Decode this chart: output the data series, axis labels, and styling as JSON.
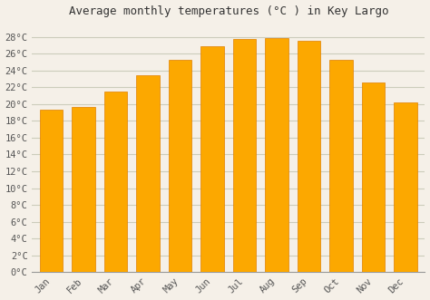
{
  "title": "Average monthly temperatures (°C ) in Key Largo",
  "months": [
    "Jan",
    "Feb",
    "Mar",
    "Apr",
    "May",
    "Jun",
    "Jul",
    "Aug",
    "Sep",
    "Oct",
    "Nov",
    "Dec"
  ],
  "values": [
    19.3,
    19.7,
    21.5,
    23.4,
    25.3,
    26.9,
    27.7,
    27.8,
    27.5,
    25.3,
    22.6,
    20.2
  ],
  "bar_color_face": "#FCA800",
  "bar_color_edge": "#E08000",
  "bar_color_light": "#FFCC55",
  "background_color": "#F5F0E8",
  "plot_bg_color": "#F5F0E8",
  "grid_color": "#CCCCBB",
  "ytick_min": 0,
  "ytick_max": 28,
  "ytick_step": 2,
  "title_fontsize": 9,
  "tick_fontsize": 7.5,
  "font_family": "monospace"
}
